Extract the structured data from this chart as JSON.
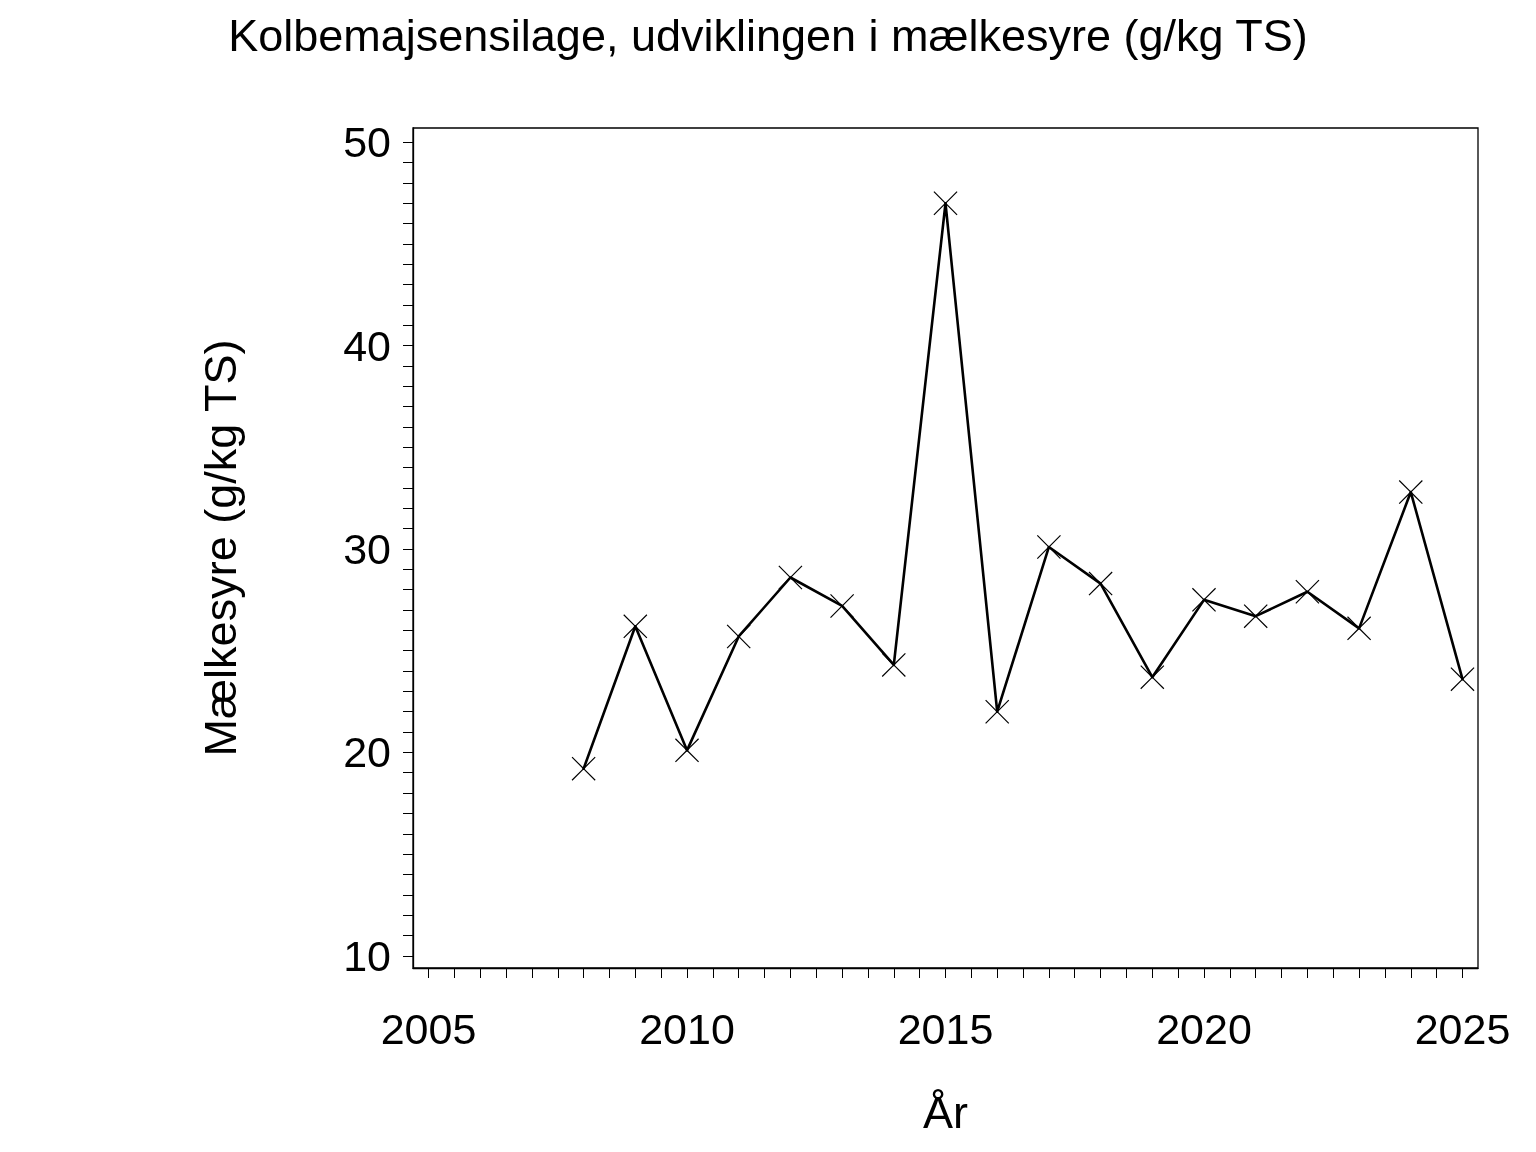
{
  "chart_data": {
    "type": "line",
    "title": "Kolbemajsensilage, udviklingen i mælkesyre (g/kg TS)",
    "xlabel": "År",
    "ylabel": "Mælkesyre (g/kg TS)",
    "x": [
      2008,
      2009,
      2010,
      2011,
      2012,
      2013,
      2014,
      2015,
      2016,
      2017,
      2018,
      2019,
      2020,
      2021,
      2022,
      2023,
      2024,
      2025
    ],
    "series": [
      {
        "color": "#000000",
        "values": [
          19.2,
          26.2,
          20.1,
          25.7,
          28.6,
          27.2,
          24.3,
          47.0,
          22.0,
          30.1,
          28.3,
          23.7,
          27.5,
          26.7,
          27.9,
          26.1,
          32.8,
          23.6
        ]
      }
    ],
    "xlim": [
      2004.7,
      2025.3
    ],
    "ylim": [
      9.4,
      50.7
    ],
    "xticks": [
      2005,
      {
        "value": 2005.5,
        "label": null
      },
      {
        "value": 2006,
        "label": null
      },
      {
        "value": 2006.5,
        "label": null
      },
      {
        "value": 2007,
        "label": null
      },
      {
        "value": 2007.5,
        "label": null
      },
      {
        "value": 2008,
        "label": null
      },
      {
        "value": 2008.5,
        "label": null
      },
      {
        "value": 2009,
        "label": null
      },
      {
        "value": 2009.5,
        "label": null
      },
      2010,
      {
        "value": 2010.5,
        "label": null
      },
      {
        "value": 2011,
        "label": null
      },
      {
        "value": 2011.5,
        "label": null
      },
      {
        "value": 2012,
        "label": null
      },
      {
        "value": 2012.5,
        "label": null
      },
      {
        "value": 2013,
        "label": null
      },
      {
        "value": 2013.5,
        "label": null
      },
      {
        "value": 2014,
        "label": null
      },
      {
        "value": 2014.5,
        "label": null
      },
      2015,
      {
        "value": 2015.5,
        "label": null
      },
      {
        "value": 2016,
        "label": null
      },
      {
        "value": 2016.5,
        "label": null
      },
      {
        "value": 2017,
        "label": null
      },
      {
        "value": 2017.5,
        "label": null
      },
      {
        "value": 2018,
        "label": null
      },
      {
        "value": 2018.5,
        "label": null
      },
      {
        "value": 2019,
        "label": null
      },
      {
        "value": 2019.5,
        "label": null
      },
      2020,
      {
        "value": 2020.5,
        "label": null
      },
      {
        "value": 2021,
        "label": null
      },
      {
        "value": 2021.5,
        "label": null
      },
      {
        "value": 2022,
        "label": null
      },
      {
        "value": 2022.5,
        "label": null
      },
      {
        "value": 2023,
        "label": null
      },
      {
        "value": 2023.5,
        "label": null
      },
      {
        "value": 2024,
        "label": null
      },
      {
        "value": 2024.5,
        "label": null
      },
      2025
    ],
    "yticks": [
      10,
      {
        "value": 11,
        "label": null
      },
      {
        "value": 12,
        "label": null
      },
      {
        "value": 13,
        "label": null
      },
      {
        "value": 14,
        "label": null
      },
      {
        "value": 15,
        "label": null
      },
      {
        "value": 16,
        "label": null
      },
      {
        "value": 17,
        "label": null
      },
      {
        "value": 18,
        "label": null
      },
      {
        "value": 19,
        "label": null
      },
      20,
      {
        "value": 21,
        "label": null
      },
      {
        "value": 22,
        "label": null
      },
      {
        "value": 23,
        "label": null
      },
      {
        "value": 24,
        "label": null
      },
      {
        "value": 25,
        "label": null
      },
      {
        "value": 26,
        "label": null
      },
      {
        "value": 27,
        "label": null
      },
      {
        "value": 28,
        "label": null
      },
      {
        "value": 29,
        "label": null
      },
      30,
      {
        "value": 31,
        "label": null
      },
      {
        "value": 32,
        "label": null
      },
      {
        "value": 33,
        "label": null
      },
      {
        "value": 34,
        "label": null
      },
      {
        "value": 35,
        "label": null
      },
      {
        "value": 36,
        "label": null
      },
      {
        "value": 37,
        "label": null
      },
      {
        "value": 38,
        "label": null
      },
      {
        "value": 39,
        "label": null
      },
      40,
      {
        "value": 41,
        "label": null
      },
      {
        "value": 42,
        "label": null
      },
      {
        "value": 43,
        "label": null
      },
      {
        "value": 44,
        "label": null
      },
      {
        "value": 45,
        "label": null
      },
      {
        "value": 46,
        "label": null
      },
      {
        "value": 47,
        "label": null
      },
      {
        "value": 48,
        "label": null
      },
      {
        "value": 49,
        "label": null
      },
      50
    ],
    "grid": false,
    "marker": "cross",
    "line_style": "solid"
  }
}
